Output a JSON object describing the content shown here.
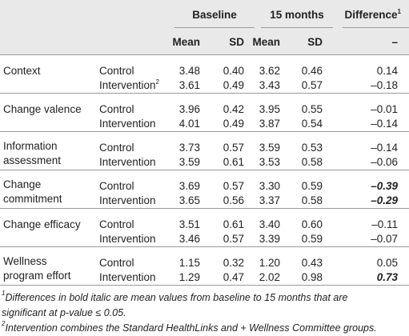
{
  "table": {
    "header": {
      "groups": [
        "Baseline",
        "15 months"
      ],
      "difference": "Difference",
      "difference_sup": "1",
      "columns": [
        "Mean",
        "SD",
        "Mean",
        "SD",
        "–"
      ]
    },
    "rows": [
      {
        "label": [
          "Context"
        ],
        "groups": [
          {
            "name": "Control",
            "values": [
              "3.48",
              "0.40",
              "3.62",
              "0.46",
              "0.14"
            ]
          },
          {
            "name": "Intervention",
            "sup": "2",
            "values": [
              "3.61",
              "0.49",
              "3.43",
              "0.57",
              "–0.18"
            ]
          }
        ]
      },
      {
        "label": [
          "Change valence"
        ],
        "groups": [
          {
            "name": "Control",
            "values": [
              "3.96",
              "0.42",
              "3.95",
              "0.55",
              "–0.01"
            ]
          },
          {
            "name": "Intervention",
            "values": [
              "4.01",
              "0.49",
              "3.87",
              "0.54",
              "–0.14"
            ]
          }
        ]
      },
      {
        "label": [
          "Information",
          "assessment"
        ],
        "groups": [
          {
            "name": "Control",
            "values": [
              "3.73",
              "0.57",
              "3.59",
              "0.53",
              "–0.14"
            ]
          },
          {
            "name": "Intervention",
            "values": [
              "3.59",
              "0.61",
              "3.53",
              "0.58",
              "–0.06"
            ]
          }
        ]
      },
      {
        "label": [
          "Change",
          "commitment"
        ],
        "groups": [
          {
            "name": "Control",
            "values": [
              "3.69",
              "0.57",
              "3.30",
              "0.59",
              "–0.39"
            ],
            "bold_italic": true
          },
          {
            "name": "Intervention",
            "values": [
              "3.65",
              "0.56",
              "3.37",
              "0.58",
              "–0.29"
            ],
            "bold_italic": true
          }
        ]
      },
      {
        "label": [
          "Change efficacy"
        ],
        "groups": [
          {
            "name": "Control",
            "values": [
              "3.51",
              "0.61",
              "3.40",
              "0.60",
              "–0.11"
            ]
          },
          {
            "name": "Intervention",
            "values": [
              "3.46",
              "0.57",
              "3.39",
              "0.59",
              "–0.07"
            ]
          }
        ]
      },
      {
        "label": [
          "Wellness",
          "program effort"
        ],
        "groups": [
          {
            "name": "Control",
            "values": [
              "1.15",
              "0.32",
              "1.20",
              "0.43",
              "0.05"
            ]
          },
          {
            "name": "Intervention",
            "values": [
              "1.29",
              "0.47",
              "2.02",
              "0.98",
              "0.73"
            ],
            "bold_italic": true
          }
        ]
      }
    ]
  },
  "footnotes": [
    {
      "sup": "1",
      "lines": [
        "Differences in bold italic are mean values from baseline to 15 months that are",
        "significant at p-value ≤ 0.05."
      ]
    },
    {
      "sup": "2",
      "lines": [
        "Intervention combines the Standard HealthLinks and + Wellness Committee groups."
      ]
    }
  ]
}
